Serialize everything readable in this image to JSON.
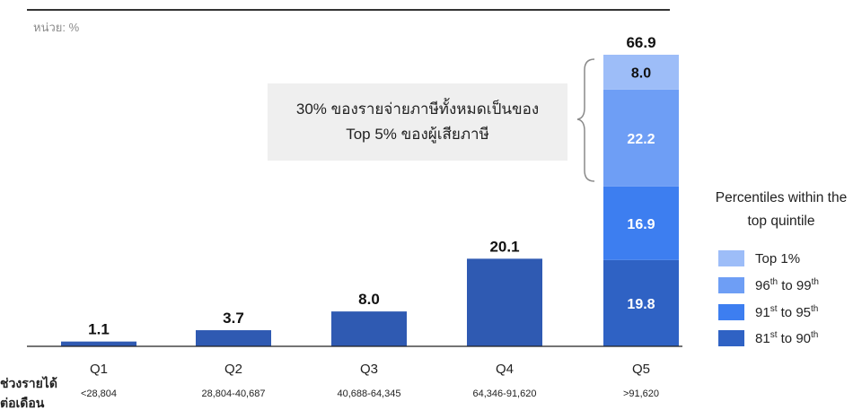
{
  "unit_label": "หน่วย: %",
  "callout": {
    "line1": "30% ของรายจ่ายภาษีทั้งหมดเป็นของ",
    "line2": "Top 5% ของผู้เสียภาษี"
  },
  "row_label": {
    "line1": "ช่วงรายได้",
    "line2": "ต่อเดือน"
  },
  "legend": {
    "title_line1": "Percentiles within the",
    "title_line2": "top quintile",
    "items": [
      {
        "label": "Top 1%",
        "color": "#9dbdf8"
      },
      {
        "label_html": "96<sup>th</sup> to 99<sup>th</sup>",
        "color": "#6e9ef5"
      },
      {
        "label_html": "91<sup>st</sup> to 95<sup>th</sup>",
        "color": "#3d7ef0"
      },
      {
        "label_html": "81<sup>st</sup> to 90<sup>th</sup>",
        "color": "#2f62c4"
      }
    ]
  },
  "chart_data": {
    "type": "bar",
    "categories": [
      "Q1",
      "Q2",
      "Q3",
      "Q4",
      "Q5"
    ],
    "income_ranges": [
      "<28,804",
      "28,804-40,687",
      "40,688-64,345",
      "64,346-91,620",
      ">91,620"
    ],
    "values": [
      1.1,
      3.7,
      8.0,
      20.1,
      66.9
    ],
    "value_labels": [
      "1.1",
      "3.7",
      "8.0",
      "20.1",
      "66.9"
    ],
    "bar_color": "#2f5ab2",
    "q5_stack": [
      {
        "name": "81st to 90th",
        "value": 19.8,
        "label": "19.8",
        "color": "#2f62c4"
      },
      {
        "name": "91st to 95th",
        "value": 16.9,
        "label": "16.9",
        "color": "#3d7ef0"
      },
      {
        "name": "96th to 99th",
        "value": 22.2,
        "label": "22.2",
        "color": "#6e9ef5"
      },
      {
        "name": "Top 1%",
        "value": 8.0,
        "label": "8.0",
        "color": "#9dbdf8"
      }
    ],
    "ylim": [
      0,
      66.9
    ],
    "grid": false
  }
}
